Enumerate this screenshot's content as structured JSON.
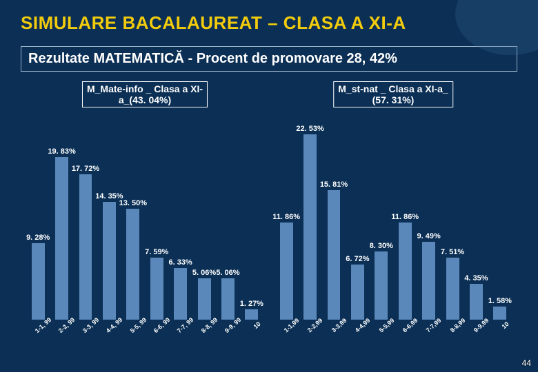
{
  "slide": {
    "background_color": "#0b2f55",
    "title": "SIMULARE BACALAUREAT – CLASA A XI-A",
    "title_color": "#f2cc0c",
    "subtitle": "Rezultate MATEMATICĂ - Procent de promovare 28, 42%",
    "subtitle_box_border": "#9bb3c9",
    "subtitle_text_color": "#ffffff",
    "swoosh_color": "#3a6a99",
    "page_number": "44"
  },
  "chart_common": {
    "xlabels": [
      "1-1, 99",
      "2-2, 99",
      "3-3, 99",
      "4-4, 99",
      "5-5, 99",
      "6-6, 99",
      "7-7, 99",
      "8-8, 99",
      "9-9, 99",
      "10"
    ],
    "xlabels_right": [
      "1-1,99",
      "2-2,99",
      "3-3,99",
      "4-4,99",
      "5-5,99",
      "6-6,99",
      "7-7,99",
      "8-8,99",
      "9-9,99",
      "10"
    ],
    "label_color": "#ffffff",
    "tick_color": "#ffffff",
    "box_border": "#ffffff",
    "title_text_color": "#ffffff",
    "bar_color": "#5a88ba",
    "ymax": 25,
    "title_fontsize": 14,
    "label_fontsize": 11,
    "tick_fontsize": 9
  },
  "chart_left": {
    "title_line1": "M_Mate-info _ Clasa a XI-",
    "title_line2": "a_(43. 04%)",
    "values": [
      9.28,
      19.83,
      17.72,
      14.35,
      13.5,
      7.59,
      6.33,
      5.06,
      5.06,
      1.27
    ],
    "labels": [
      "9. 28%",
      "19. 83%",
      "17. 72%",
      "14. 35%",
      "13. 50%",
      "7. 59%",
      "6. 33%",
      "5. 06%",
      "5. 06%",
      "1. 27%"
    ]
  },
  "chart_right": {
    "title_line1": "M_st-nat _ Clasa a XI-a_",
    "title_line2": "(57. 31%)",
    "values": [
      11.86,
      22.53,
      15.81,
      6.72,
      8.3,
      11.86,
      9.49,
      7.51,
      4.35,
      1.58
    ],
    "labels": [
      "11. 86%",
      "22. 53%",
      "15. 81%",
      "6. 72%",
      "8. 30%",
      "11. 86%",
      "9. 49%",
      "7. 51%",
      "4. 35%",
      "1. 58%"
    ]
  }
}
